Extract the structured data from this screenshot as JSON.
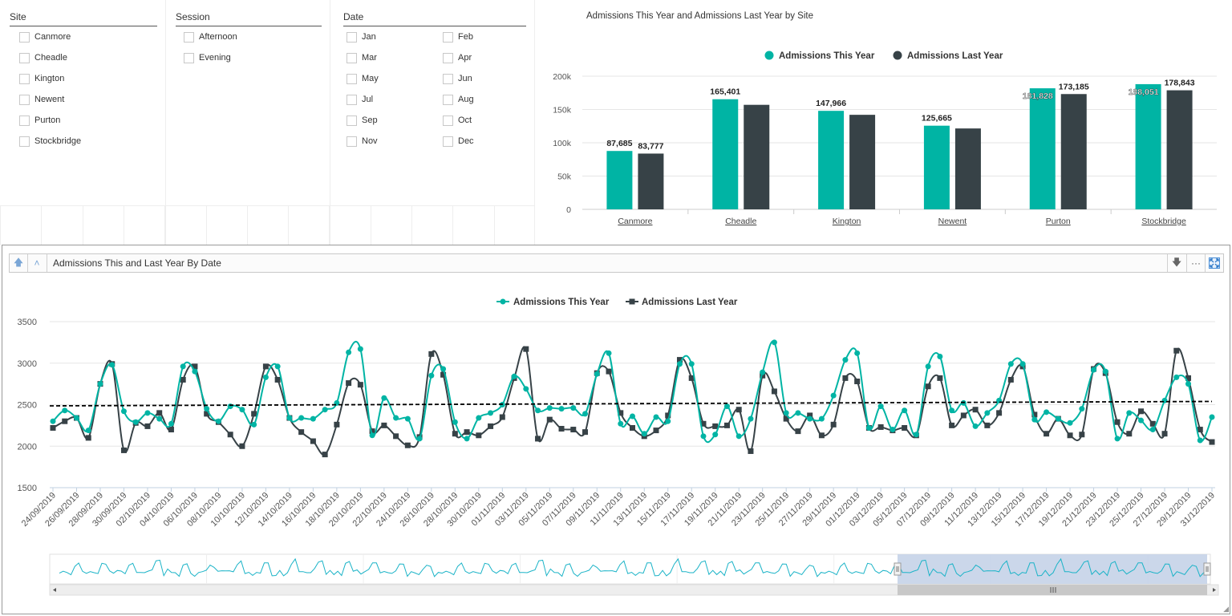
{
  "filters": {
    "site": {
      "title": "Site",
      "items": [
        "Canmore",
        "Cheadle",
        "Kington",
        "Newent",
        "Purton",
        "Stockbridge"
      ]
    },
    "session": {
      "title": "Session",
      "items": [
        "Afternoon",
        "Evening"
      ]
    },
    "date": {
      "title": "Date",
      "items": [
        "Jan",
        "Feb",
        "Mar",
        "Apr",
        "May",
        "Jun",
        "Jul",
        "Aug",
        "Sep",
        "Oct",
        "Nov",
        "Dec"
      ]
    }
  },
  "toolbar": {
    "title": "Admissions This and Last Year By Date",
    "more_label": "···"
  },
  "icons": {
    "drill_up": "arrow-up-icon",
    "drill_up_all": "double-arrow-up-icon",
    "drill_down": "arrow-down-icon",
    "more": "ellipsis-icon",
    "expand": "expand-icon"
  },
  "colors": {
    "this_year": "#00b4a4",
    "last_year": "#374247",
    "average_line": "#000000",
    "navigator_selection": "#c5d3e8"
  },
  "chart_data": [
    {
      "type": "bar",
      "title": "Admissions This Year and Admissions Last Year by Site",
      "categories": [
        "Canmore",
        "Cheadle",
        "Kington",
        "Newent",
        "Purton",
        "Stockbridge"
      ],
      "series": [
        {
          "name": "Admissions This Year",
          "values": [
            87685,
            165401,
            147966,
            125665,
            181828,
            188051
          ],
          "labels": [
            "87,685",
            "165,401",
            "147,966",
            "125,665",
            "181,828",
            "188,051"
          ]
        },
        {
          "name": "Admissions Last Year",
          "values": [
            83777,
            157000,
            142000,
            121500,
            173185,
            178843
          ],
          "labels": [
            "83,777",
            "",
            "",
            "",
            "173,185",
            "178,843"
          ]
        }
      ],
      "yticks": [
        0,
        50000,
        100000,
        150000,
        200000
      ],
      "ytick_labels": [
        "0",
        "50k",
        "100k",
        "150k",
        "200k"
      ],
      "ylim": [
        0,
        200000
      ],
      "legend": "top-center"
    },
    {
      "type": "line",
      "title": "Admissions This and Last Year By Date",
      "x_start": "24/09/2019",
      "x_end": "31/12/2019",
      "x_tick_labels": [
        "24/09/2019",
        "26/09/2019",
        "28/09/2019",
        "30/09/2019",
        "02/10/2019",
        "04/10/2019",
        "06/10/2019",
        "08/10/2019",
        "10/10/2019",
        "12/10/2019",
        "14/10/2019",
        "16/10/2019",
        "18/10/2019",
        "20/10/2019",
        "22/10/2019",
        "24/10/2019",
        "26/10/2019",
        "28/10/2019",
        "30/10/2019",
        "01/11/2019",
        "03/11/2019",
        "05/11/2019",
        "07/11/2019",
        "09/11/2019",
        "11/11/2019",
        "13/11/2019",
        "15/11/2019",
        "17/11/2019",
        "19/11/2019",
        "21/11/2019",
        "23/11/2019",
        "25/11/2019",
        "27/11/2019",
        "29/11/2019",
        "01/12/2019",
        "03/12/2019",
        "05/12/2019",
        "07/12/2019",
        "09/12/2019",
        "11/12/2019",
        "13/12/2019",
        "15/12/2019",
        "17/12/2019",
        "19/12/2019",
        "21/12/2019",
        "23/12/2019",
        "25/12/2019",
        "27/12/2019",
        "29/12/2019",
        "31/12/2019"
      ],
      "series": [
        {
          "name": "Admissions This Year",
          "values": [
            2300,
            2430,
            2340,
            2190,
            2750,
            2980,
            2420,
            2290,
            2400,
            2330,
            2270,
            2960,
            2900,
            2450,
            2300,
            2480,
            2440,
            2260,
            2830,
            2960,
            2340,
            2340,
            2330,
            2440,
            2520,
            3130,
            3170,
            2130,
            2580,
            2340,
            2330,
            2090,
            2850,
            2930,
            2290,
            2090,
            2340,
            2400,
            2500,
            2840,
            2690,
            2430,
            2460,
            2450,
            2460,
            2390,
            2870,
            3120,
            2270,
            2360,
            2150,
            2350,
            2300,
            2990,
            2990,
            2120,
            2140,
            2480,
            2120,
            2330,
            2890,
            3250,
            2400,
            2400,
            2330,
            2330,
            2610,
            3040,
            3120,
            2220,
            2480,
            2200,
            2430,
            2140,
            2960,
            3080,
            2430,
            2520,
            2240,
            2400,
            2550,
            2990,
            2990,
            2320,
            2410,
            2330,
            2280,
            2450,
            2920,
            2900,
            2090,
            2400,
            2310,
            2200,
            2550,
            2830,
            2750,
            2070,
            2350
          ],
          "markers": "circle"
        },
        {
          "name": "Admissions Last Year",
          "values": [
            2220,
            2300,
            2340,
            2100,
            2750,
            2990,
            1950,
            2280,
            2240,
            2400,
            2200,
            2800,
            2960,
            2390,
            2290,
            2140,
            2000,
            2390,
            2960,
            2800,
            2340,
            2170,
            2060,
            1900,
            2260,
            2760,
            2740,
            2180,
            2250,
            2120,
            2010,
            2110,
            3110,
            2860,
            2150,
            2170,
            2130,
            2240,
            2350,
            2820,
            3170,
            2090,
            2320,
            2210,
            2200,
            2170,
            2880,
            2900,
            2400,
            2220,
            2120,
            2190,
            2370,
            3040,
            2820,
            2270,
            2240,
            2250,
            2440,
            1940,
            2850,
            2660,
            2330,
            2180,
            2370,
            2130,
            2260,
            2820,
            2780,
            2220,
            2230,
            2190,
            2220,
            2130,
            2720,
            2820,
            2250,
            2370,
            2440,
            2250,
            2400,
            2800,
            2960,
            2380,
            2150,
            2330,
            2130,
            2140,
            2930,
            2880,
            2290,
            2150,
            2420,
            2270,
            2150,
            3150,
            2820,
            2200,
            2050
          ],
          "markers": "square"
        }
      ],
      "average_line": 2500,
      "yticks": [
        1500,
        2000,
        2500,
        3000,
        3500
      ],
      "ylim": [
        1500,
        3500
      ],
      "legend": "top-center"
    }
  ]
}
